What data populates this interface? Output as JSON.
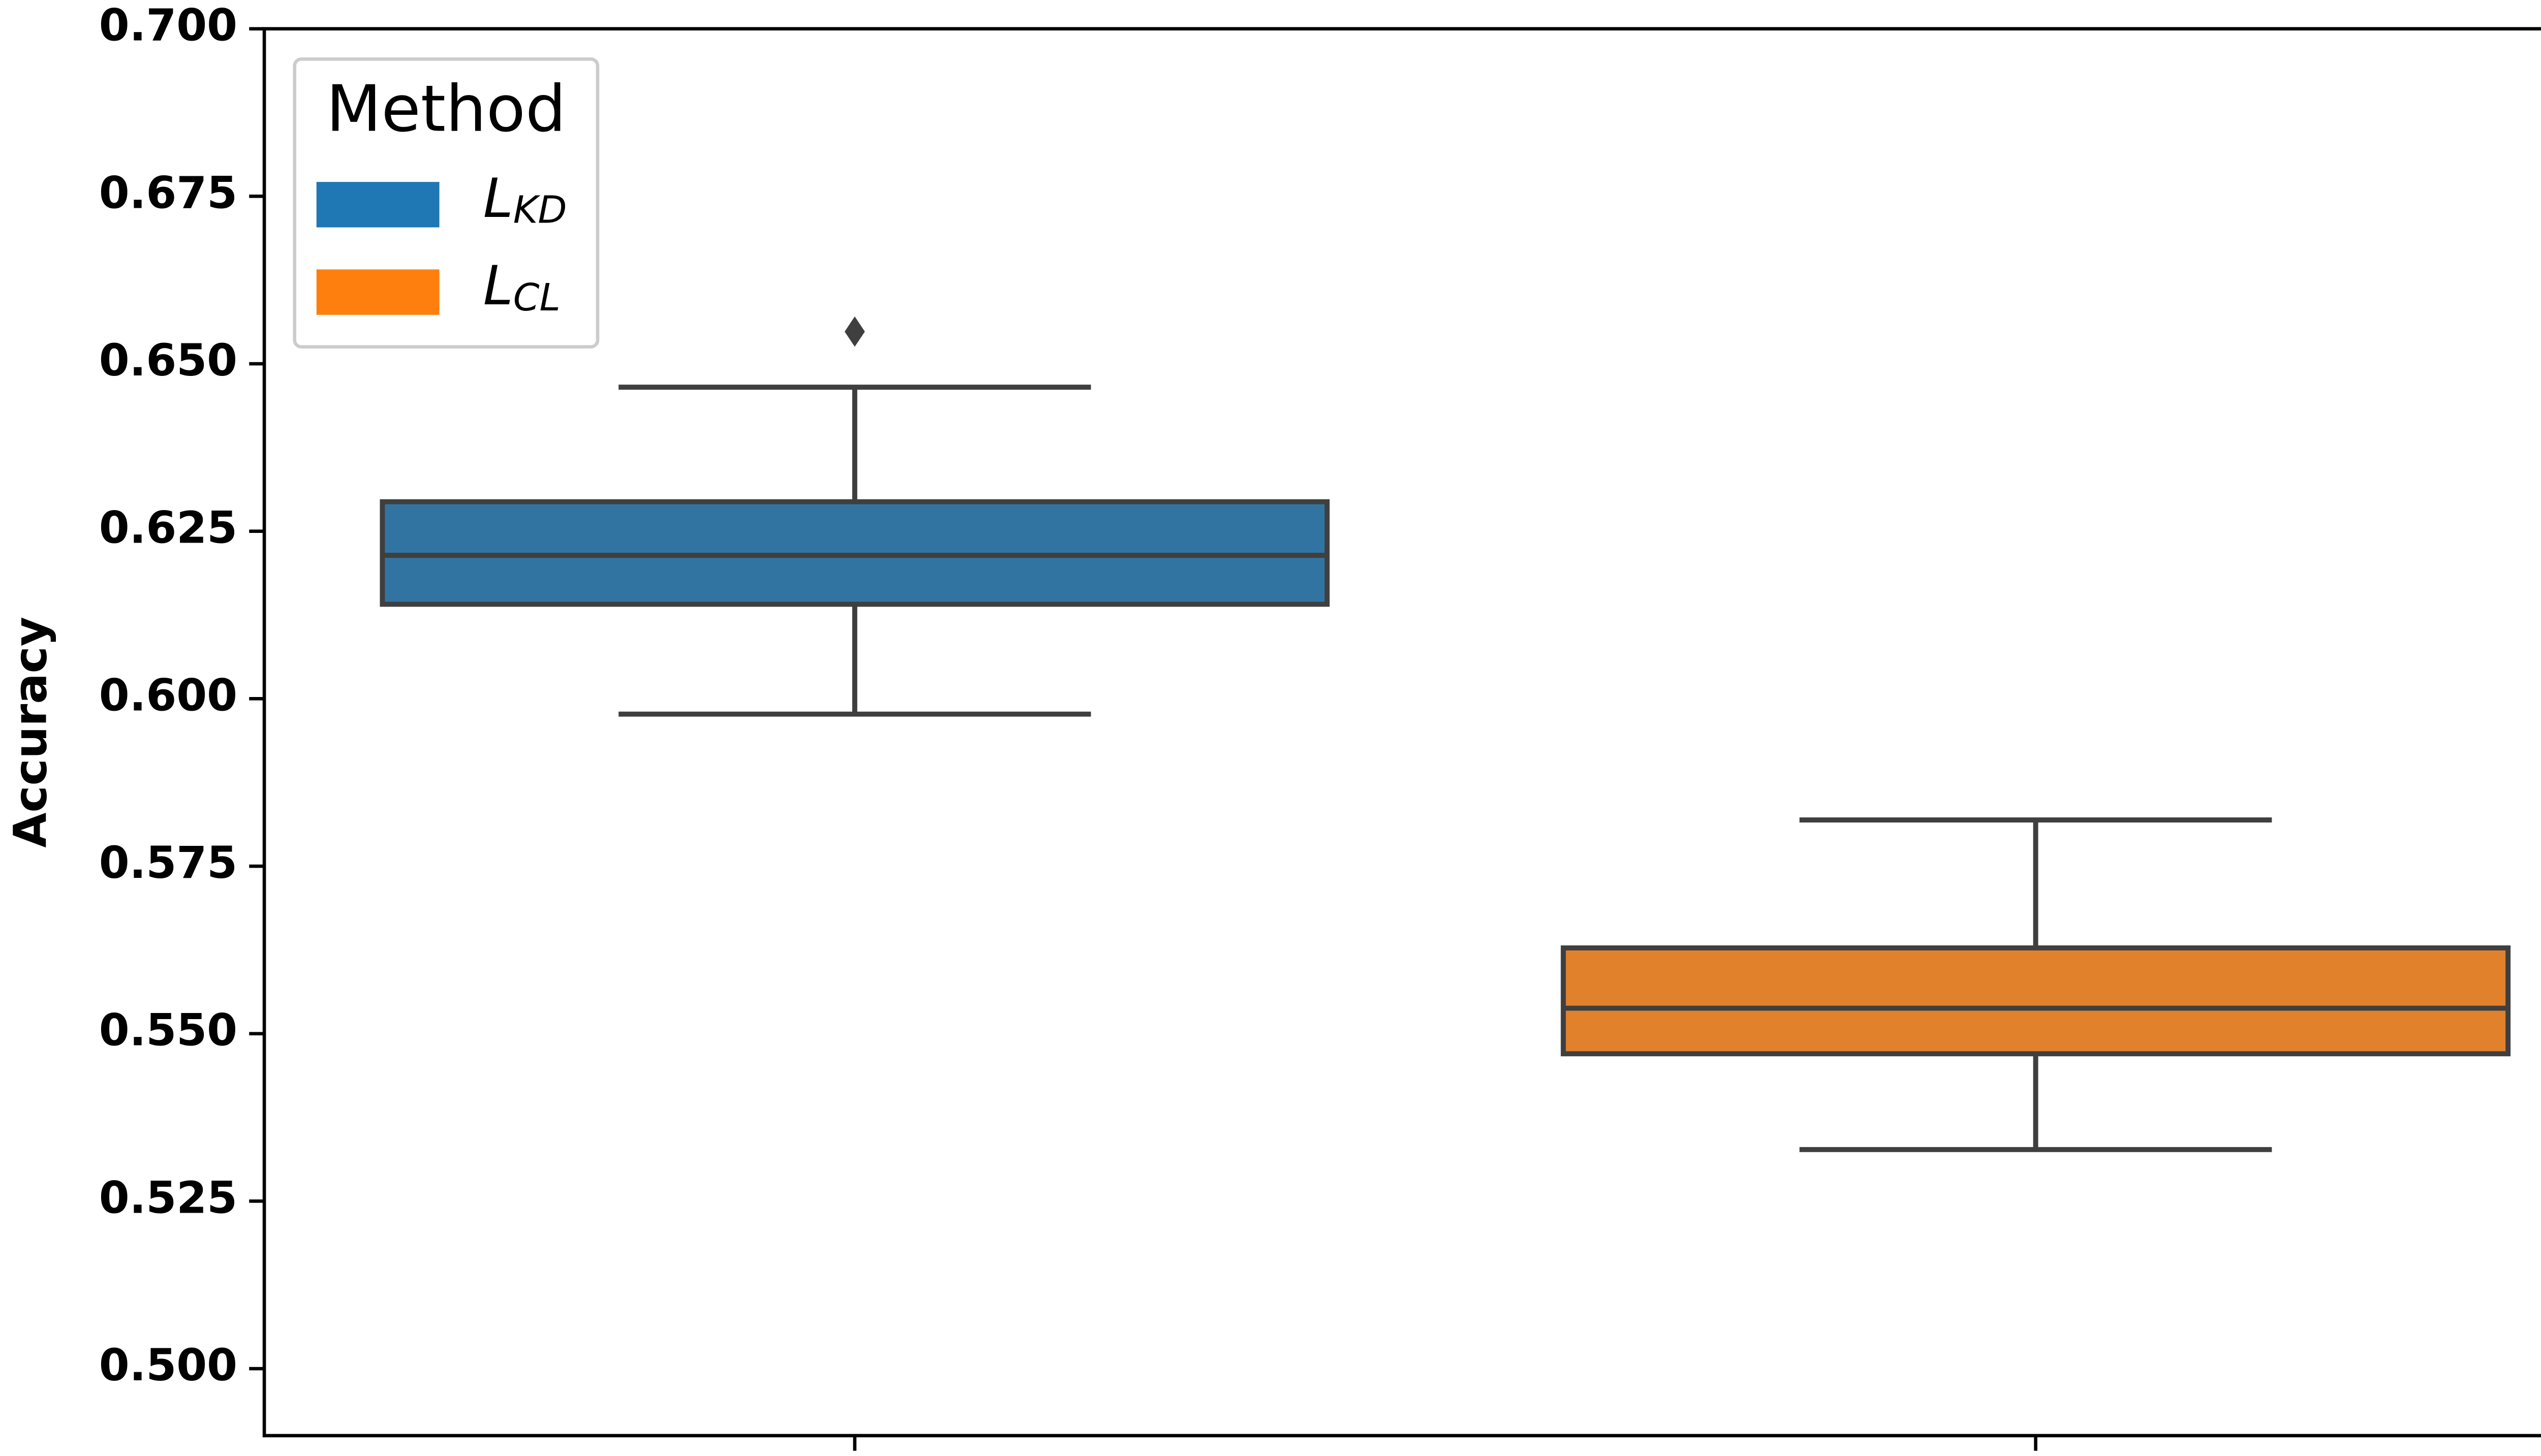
{
  "chart_data": {
    "type": "box",
    "y_label": "Accuracy",
    "legend_title": "Method",
    "legend_loc": "upper left",
    "categories": [
      null,
      null
    ],
    "ylim": [
      0.49,
      0.7
    ],
    "yticks": [
      {
        "value": 0.5,
        "label": "0.500"
      },
      {
        "value": 0.525,
        "label": "0.525"
      },
      {
        "value": 0.55,
        "label": "0.550"
      },
      {
        "value": 0.575,
        "label": "0.575"
      },
      {
        "value": 0.6,
        "label": "0.600"
      },
      {
        "value": 0.625,
        "label": "0.625"
      },
      {
        "value": 0.65,
        "label": "0.650"
      },
      {
        "value": 0.675,
        "label": "0.675"
      },
      {
        "value": 0.7,
        "label": "0.700"
      }
    ],
    "series": [
      {
        "name": "L_KD",
        "color": "#1f77b4",
        "fill": "#3274a1",
        "min": 0.5977,
        "q1": 0.6141,
        "median": 0.6214,
        "q3": 0.6294,
        "max": 0.6465,
        "outliers": [
          0.6548
        ]
      },
      {
        "name": "L_CL",
        "color": "#ff7f0e",
        "fill": "#e1812c",
        "min": 0.5327,
        "q1": 0.547,
        "median": 0.5538,
        "q3": 0.5628,
        "max": 0.5819,
        "outliers": []
      }
    ]
  }
}
